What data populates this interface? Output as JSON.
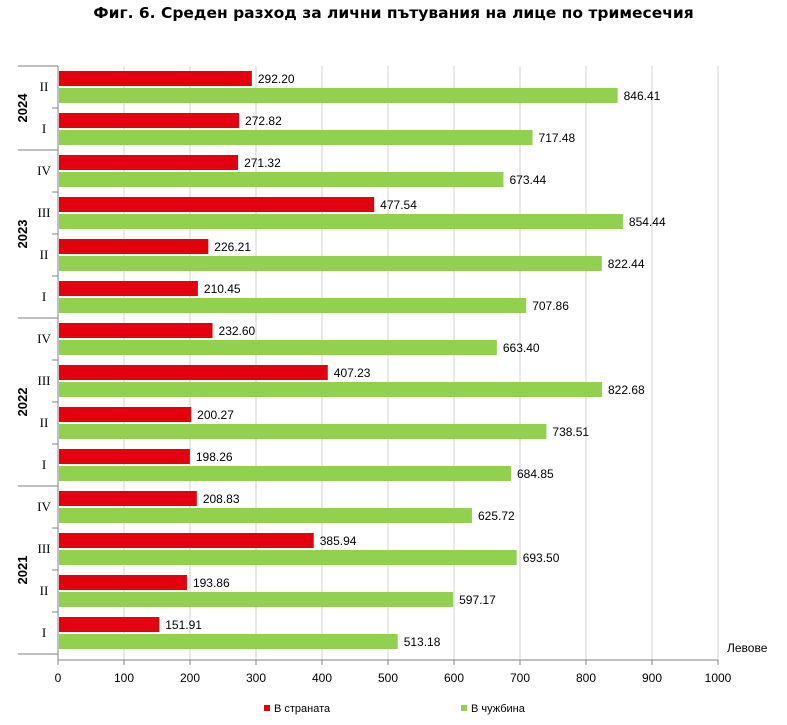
{
  "title": "Фиг. 6. Среден разход за лични пътувания на лице по тримесечия",
  "chart_data": {
    "type": "bar",
    "orientation": "horizontal",
    "title": "Фиг. 6. Среден разход за лични пътувания на лице по тримесечия",
    "xlabel": "Левове",
    "ylabel": "",
    "xlim": [
      0,
      1000
    ],
    "xticks": [
      0,
      100,
      200,
      300,
      400,
      500,
      600,
      700,
      800,
      900,
      1000
    ],
    "grid": true,
    "legend_position": "bottom",
    "groups": [
      {
        "year": "2024",
        "categories": [
          "II",
          "I"
        ]
      },
      {
        "year": "2023",
        "categories": [
          "IV",
          "III",
          "II",
          "I"
        ]
      },
      {
        "year": "2022",
        "categories": [
          "IV",
          "III",
          "II",
          "I"
        ]
      },
      {
        "year": "2021",
        "categories": [
          "IV",
          "III",
          "II",
          "I"
        ]
      }
    ],
    "series": [
      {
        "name": "В страната",
        "color": "#e3000f",
        "values": [
          292.2,
          272.82,
          271.32,
          477.54,
          226.21,
          210.45,
          232.6,
          407.23,
          200.27,
          198.26,
          208.83,
          385.94,
          193.86,
          151.91
        ],
        "labels": [
          "292.20",
          "272.82",
          "271.32",
          "477.54",
          "226.21",
          "210.45",
          "232.60",
          "407.23",
          "200.27",
          "198.26",
          "208.83",
          "385.94",
          "193.86",
          "151.91"
        ]
      },
      {
        "name": "В чужбина",
        "color": "#92d050",
        "values": [
          846.41,
          717.48,
          673.44,
          854.44,
          822.44,
          707.86,
          663.4,
          822.68,
          738.51,
          684.85,
          625.72,
          693.5,
          597.17,
          513.18
        ],
        "labels": [
          "846.41",
          "717.48",
          "673.44",
          "854.44",
          "822.44",
          "707.86",
          "663.40",
          "822.68",
          "738.51",
          "684.85",
          "625.72",
          "693.50",
          "597.17",
          "513.18"
        ]
      }
    ]
  }
}
